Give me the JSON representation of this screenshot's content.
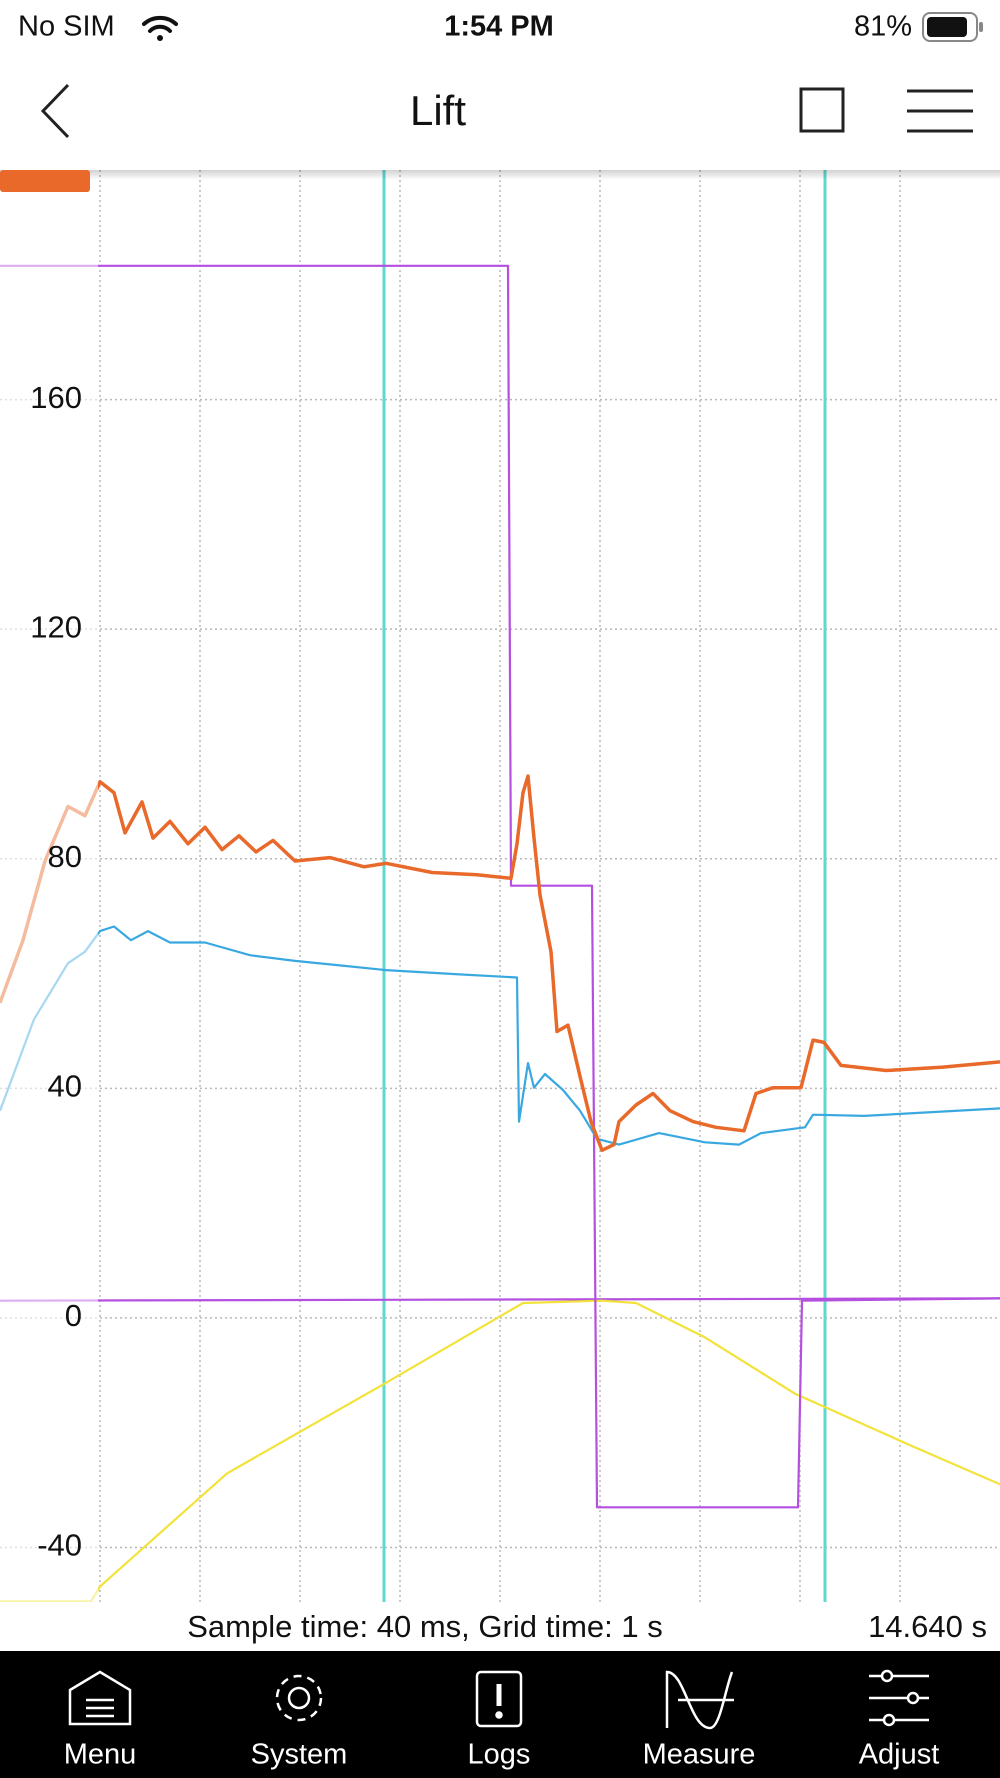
{
  "status_bar": {
    "carrier": "No SIM",
    "time": "1:54 PM",
    "battery": "81%"
  },
  "nav": {
    "title": "Lift"
  },
  "chart_data": {
    "type": "line",
    "xlim": [
      0,
      10
    ],
    "xticks": [
      1,
      2,
      3,
      4,
      5,
      6,
      7,
      8,
      9
    ],
    "xgrid": true,
    "ylim": [
      -49.5,
      200
    ],
    "yticks": [
      160,
      120,
      80,
      40,
      0,
      -40
    ],
    "grid": true,
    "cursors": [
      3.84,
      8.25
    ],
    "cursor_color": "#5fd8d2",
    "series": [
      {
        "color": "#b44fe0",
        "x": [
          0,
          10
        ],
        "values": [
          3.0,
          3.4
        ]
      },
      {
        "color": "#f2e23a",
        "x": [
          0,
          0.91,
          1,
          2.27,
          3.86,
          5.23,
          6.02,
          6.36,
          7.05,
          7.95,
          9.09,
          10
        ],
        "values": [
          -49.4,
          -49.4,
          -46.8,
          -27.1,
          -11.3,
          2.6,
          3.0,
          2.6,
          -3.4,
          -13.2,
          -22.1,
          -29.0
        ]
      },
      {
        "color": "#b44fe0",
        "x": [
          0,
          5.08,
          5.11,
          5.92,
          5.97,
          7.98,
          8.02,
          10
        ],
        "values": [
          183.3,
          183.3,
          75.3,
          75.3,
          -33.0,
          -33.0,
          3.0,
          3.4
        ]
      },
      {
        "color": "#3aa8e0",
        "x": [
          0,
          0.34,
          0.68,
          0.85,
          1,
          1.14,
          1.31,
          1.48,
          1.7,
          2.05,
          2.5,
          2.95,
          3.41,
          3.86,
          4.55,
          5.17,
          5.19,
          5.28,
          5.34,
          5.45,
          5.63,
          5.8,
          5.97,
          6.19,
          6.59,
          7.05,
          7.39,
          7.61,
          8.05,
          8.13,
          8.64,
          10
        ],
        "values": [
          36.1,
          52.0,
          61.8,
          63.8,
          67.4,
          68.2,
          65.8,
          67.4,
          65.4,
          65.4,
          63.2,
          62.2,
          61.4,
          60.6,
          59.9,
          59.3,
          34.2,
          44.4,
          40.1,
          42.5,
          39.7,
          36.1,
          31.2,
          30.2,
          32.2,
          30.6,
          30.2,
          32.2,
          33.2,
          35.4,
          35.2,
          36.5
        ]
      },
      {
        "color": "#e8692a",
        "x": [
          0,
          0.23,
          0.45,
          0.68,
          0.85,
          1,
          1.14,
          1.25,
          1.42,
          1.53,
          1.7,
          1.88,
          2.05,
          2.22,
          2.39,
          2.56,
          2.73,
          2.95,
          3.3,
          3.64,
          3.86,
          4.32,
          4.77,
          5.11,
          5.17,
          5.23,
          5.28,
          5.34,
          5.4,
          5.51,
          5.57,
          5.68,
          5.8,
          5.91,
          6.02,
          6.14,
          6.19,
          6.36,
          6.53,
          6.7,
          6.93,
          7.16,
          7.44,
          7.56,
          7.73,
          8.01,
          8.13,
          8.24,
          8.41,
          8.86,
          9.43,
          10
        ],
        "values": [
          54.9,
          65.8,
          79.6,
          89.1,
          87.5,
          93.4,
          91.5,
          84.5,
          89.9,
          83.6,
          86.5,
          82.6,
          85.5,
          81.6,
          84.0,
          81.2,
          83.2,
          79.6,
          80.2,
          78.6,
          79.2,
          77.6,
          77.2,
          76.6,
          82.6,
          91.5,
          94.4,
          83.6,
          73.7,
          63.8,
          49.9,
          51.0,
          42.1,
          34.2,
          29.2,
          30.2,
          34.2,
          37.1,
          39.1,
          36.1,
          34.2,
          33.2,
          32.6,
          39.1,
          40.1,
          40.1,
          48.4,
          48.0,
          44.0,
          43.1,
          43.7,
          44.6
        ]
      }
    ]
  },
  "footer": {
    "sample_info": "Sample time: 40 ms, Grid time: 1 s",
    "elapsed": "14.640 s"
  },
  "tabs": [
    "Menu",
    "System",
    "Logs",
    "Measure",
    "Adjust"
  ]
}
